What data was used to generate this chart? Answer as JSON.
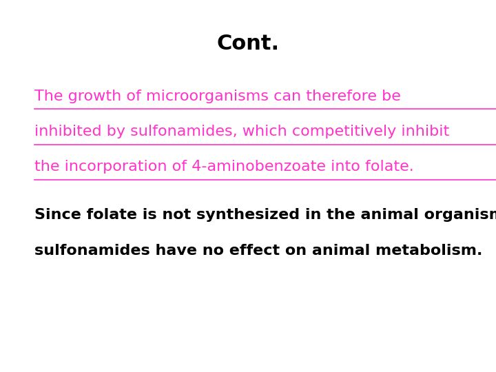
{
  "title": "Cont.",
  "title_color": "#000000",
  "title_fontsize": 22,
  "title_fontweight": "bold",
  "background_color": "#ffffff",
  "pink_paragraph_lines": [
    "The growth of microorganisms can therefore be",
    "inhibited by sulfonamides, which competitively inhibit",
    "the incorporation of 4-aminobenzoate into folate."
  ],
  "pink_color": "#FF33CC",
  "pink_fontsize": 16,
  "pink_italic_word": "sulfonamides,",
  "black_paragraph_lines": [
    "Since folate is not synthesized in the animal organism,",
    "sulfonamides have no effect on animal metabolism."
  ],
  "black_color": "#000000",
  "black_fontsize": 16,
  "fig_width": 7.2,
  "fig_height": 5.4,
  "dpi": 100
}
